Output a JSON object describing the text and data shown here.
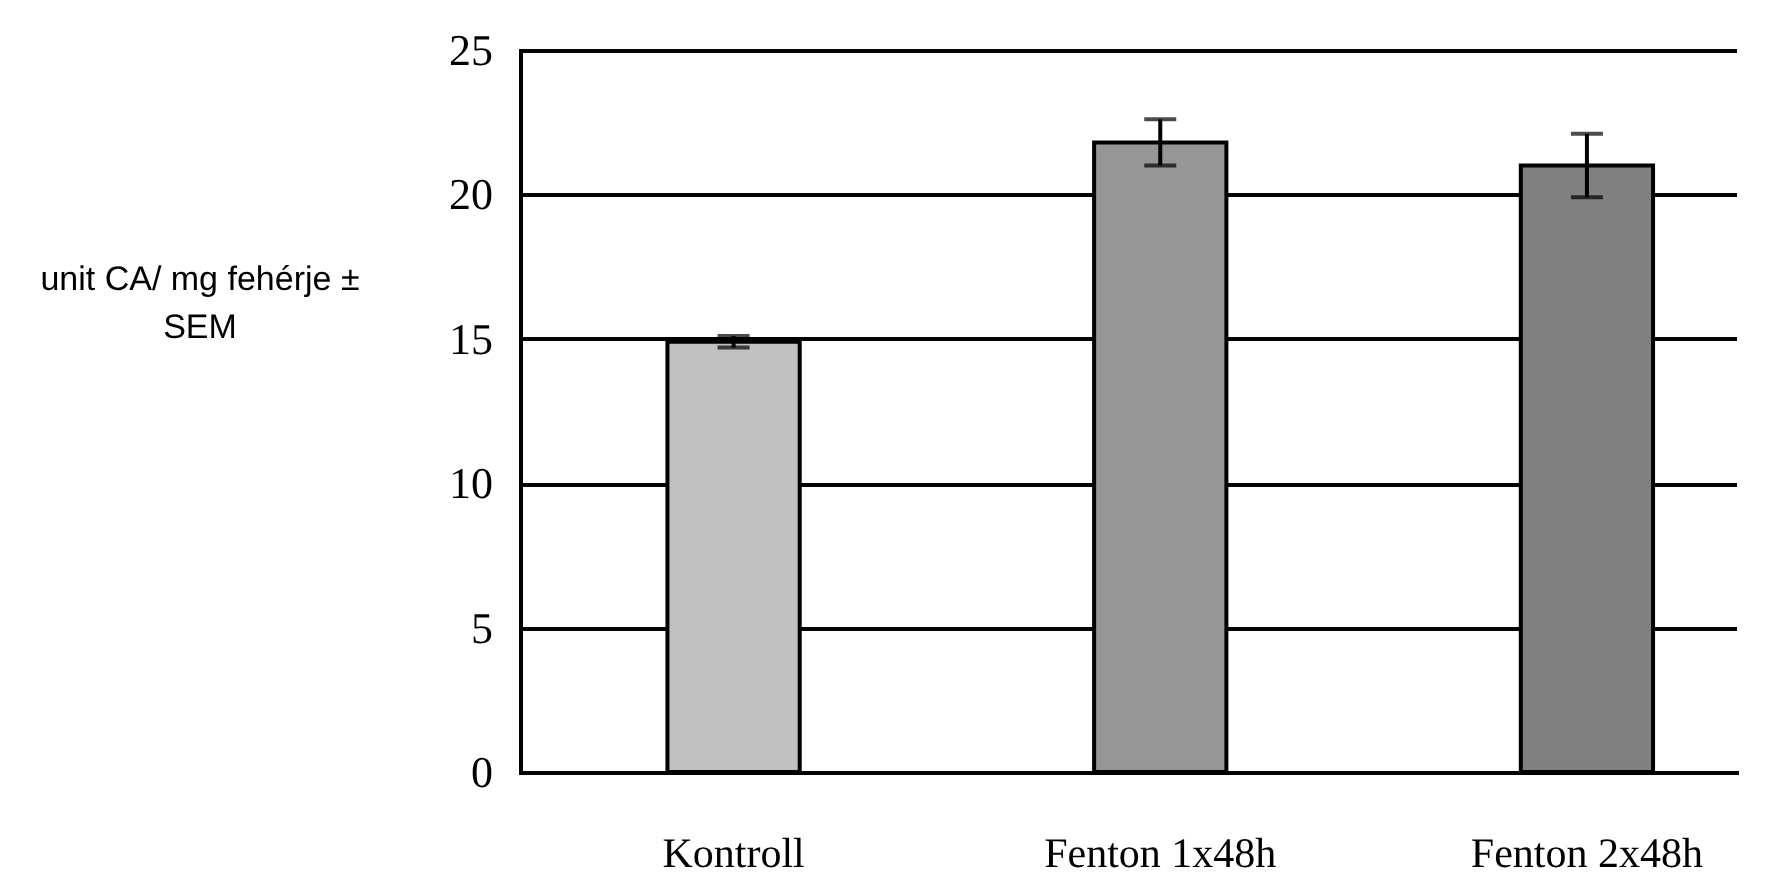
{
  "chart_data": {
    "type": "bar",
    "ylabel": "unit CA/ mg fehérje ± SEM",
    "categories": [
      "Kontroll",
      "Fenton 1x48h",
      "Fenton 2x48h"
    ],
    "values": [
      14.9,
      21.8,
      21.0
    ],
    "colors": [
      "#c0c0c0",
      "#969696",
      "#808080"
    ],
    "errors": [
      0.2,
      0.8,
      1.1
    ],
    "ylim": [
      0,
      25
    ],
    "yticks": [
      0,
      5,
      10,
      15,
      20,
      25
    ],
    "grid": "y"
  }
}
